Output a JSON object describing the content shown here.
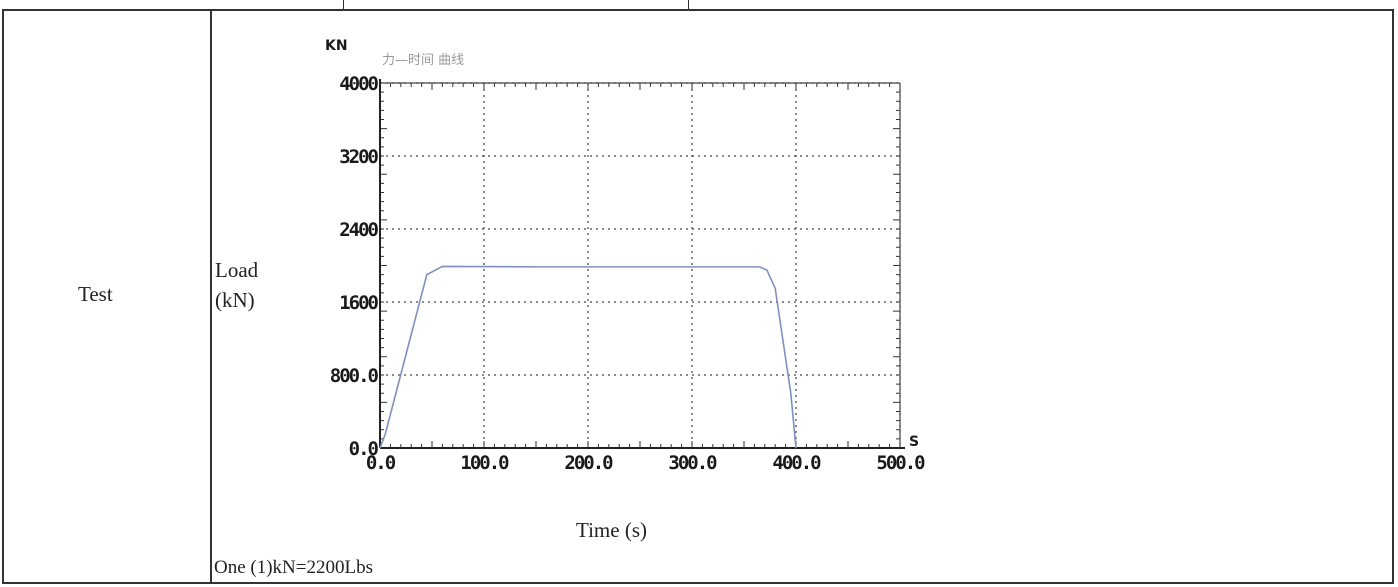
{
  "table": {
    "row_label": "Test",
    "ylabel": "Load\n(kN)",
    "xlabel": "Time (s)",
    "conversion_note": "One (1)kN=2200Lbs"
  },
  "chart_data": {
    "type": "line",
    "y_unit": "KN",
    "x_unit": "S",
    "header_faint": "力—时间 曲线",
    "xlim": [
      0,
      500
    ],
    "ylim": [
      0,
      4000
    ],
    "x_ticks": [
      "0.0",
      "100.0",
      "200.0",
      "300.0",
      "400.0",
      "500.0"
    ],
    "y_ticks": [
      "0.0",
      "800.0",
      "1600",
      "2400",
      "3200",
      "4000"
    ],
    "grid": true,
    "series": [
      {
        "color": "#7f8fbf",
        "x": [
          0,
          5,
          45,
          60,
          150,
          250,
          340,
          365,
          372,
          380,
          395,
          400
        ],
        "y": [
          0,
          150,
          1900,
          1990,
          1985,
          1985,
          1985,
          1985,
          1950,
          1750,
          600,
          0
        ]
      }
    ]
  }
}
